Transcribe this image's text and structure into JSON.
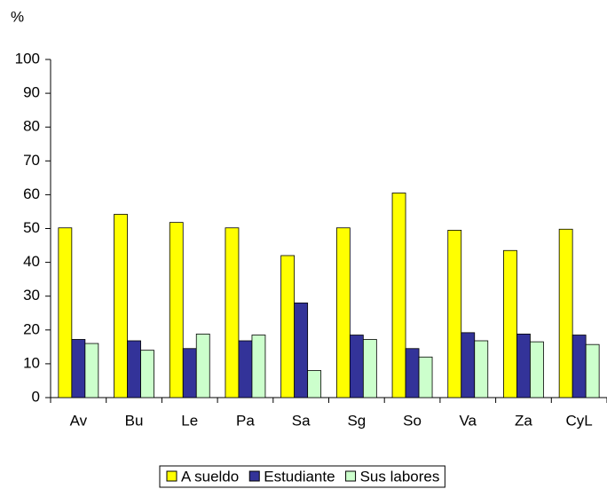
{
  "chart_data": {
    "type": "bar",
    "y_label": "%",
    "categories": [
      "Av",
      "Bu",
      "Le",
      "Pa",
      "Sa",
      "Sg",
      "So",
      "Va",
      "Za",
      "CyL"
    ],
    "series": [
      {
        "name": "A sueldo",
        "color": "#ffff00",
        "values": [
          50.2,
          54.2,
          51.8,
          50.2,
          42,
          50.2,
          60.5,
          49.5,
          43.5,
          49.8
        ]
      },
      {
        "name": "Estudiante",
        "color": "#333399",
        "values": [
          17.2,
          16.8,
          14.5,
          16.8,
          28,
          18.5,
          14.5,
          19.2,
          18.8,
          18.5
        ]
      },
      {
        "name": "Sus labores",
        "color": "#ccffcc",
        "values": [
          16,
          14,
          18.8,
          18.5,
          8,
          17.2,
          12,
          16.8,
          16.5,
          15.7
        ]
      }
    ],
    "ylim": [
      0,
      100
    ],
    "yticks": [
      0,
      10,
      20,
      30,
      40,
      50,
      60,
      70,
      80,
      90,
      100
    ],
    "grid": false,
    "legend": "bottom"
  }
}
